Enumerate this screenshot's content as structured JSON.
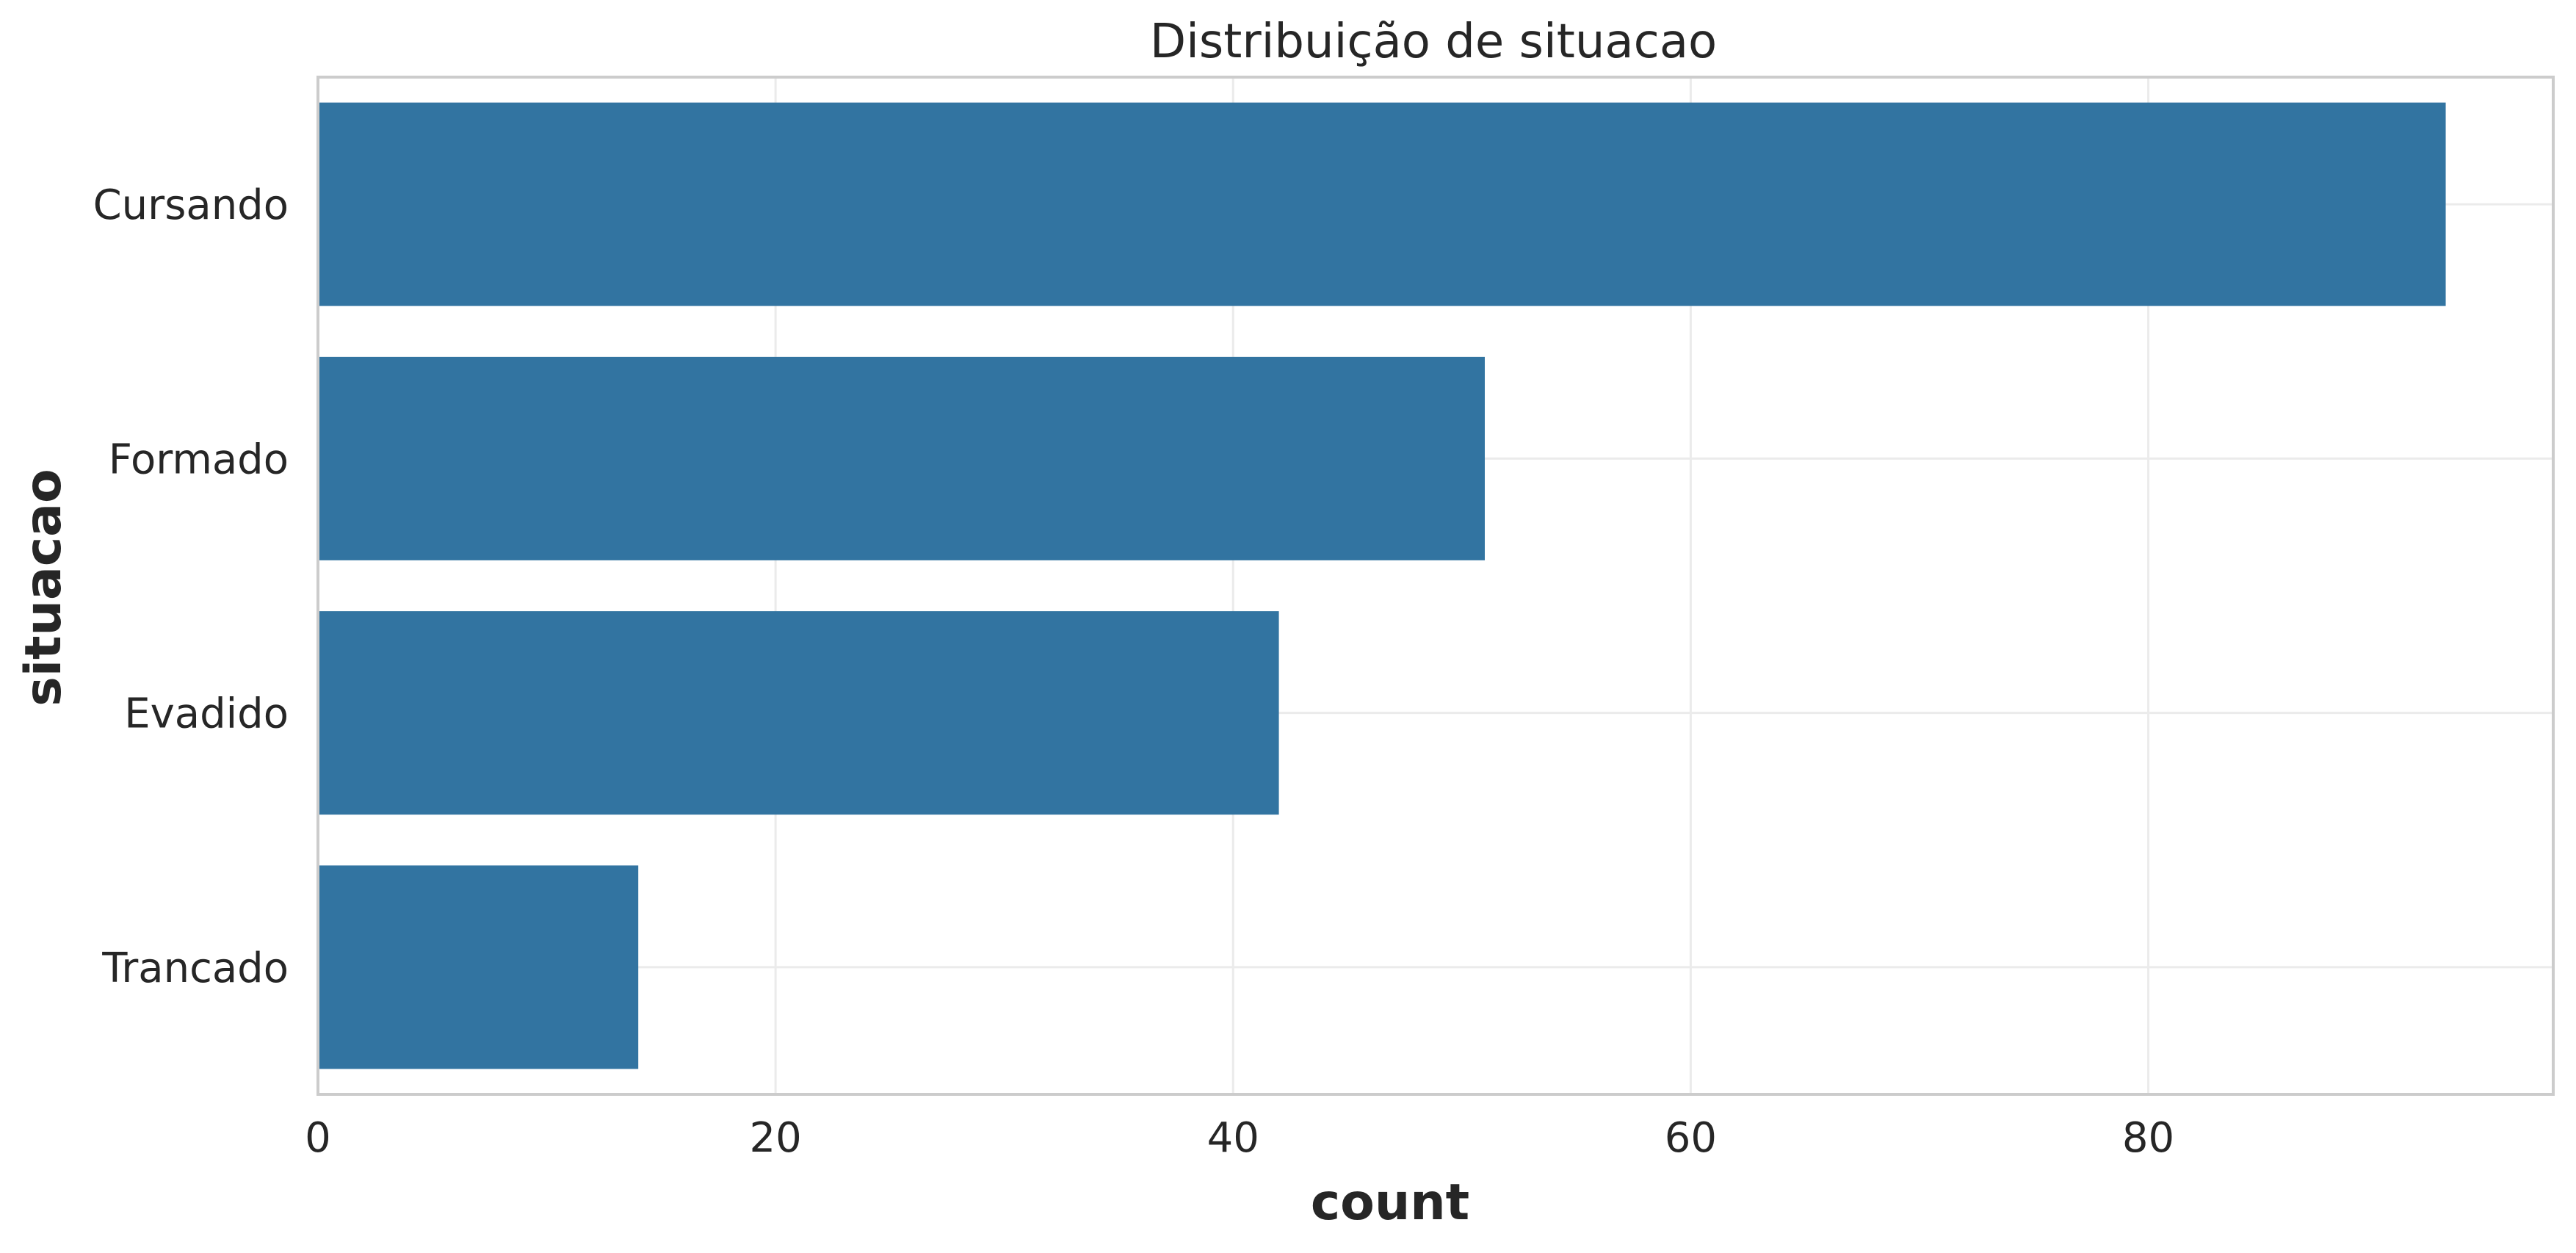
{
  "chart_data": {
    "type": "bar",
    "orientation": "horizontal",
    "title": "Distribuição de situacao",
    "xlabel": "count",
    "ylabel": "situacao",
    "categories": [
      "Cursando",
      "Formado",
      "Evadido",
      "Trancado"
    ],
    "values": [
      93,
      51,
      42,
      14
    ],
    "xlim": [
      0,
      97.7
    ],
    "xticks": [
      0,
      20,
      40,
      60,
      80
    ],
    "grid": true,
    "legend": "none",
    "bar_color": "#3274a1",
    "grid_color": "#ebebeb",
    "frame_color": "#cccccc",
    "text_color": "#262626"
  }
}
